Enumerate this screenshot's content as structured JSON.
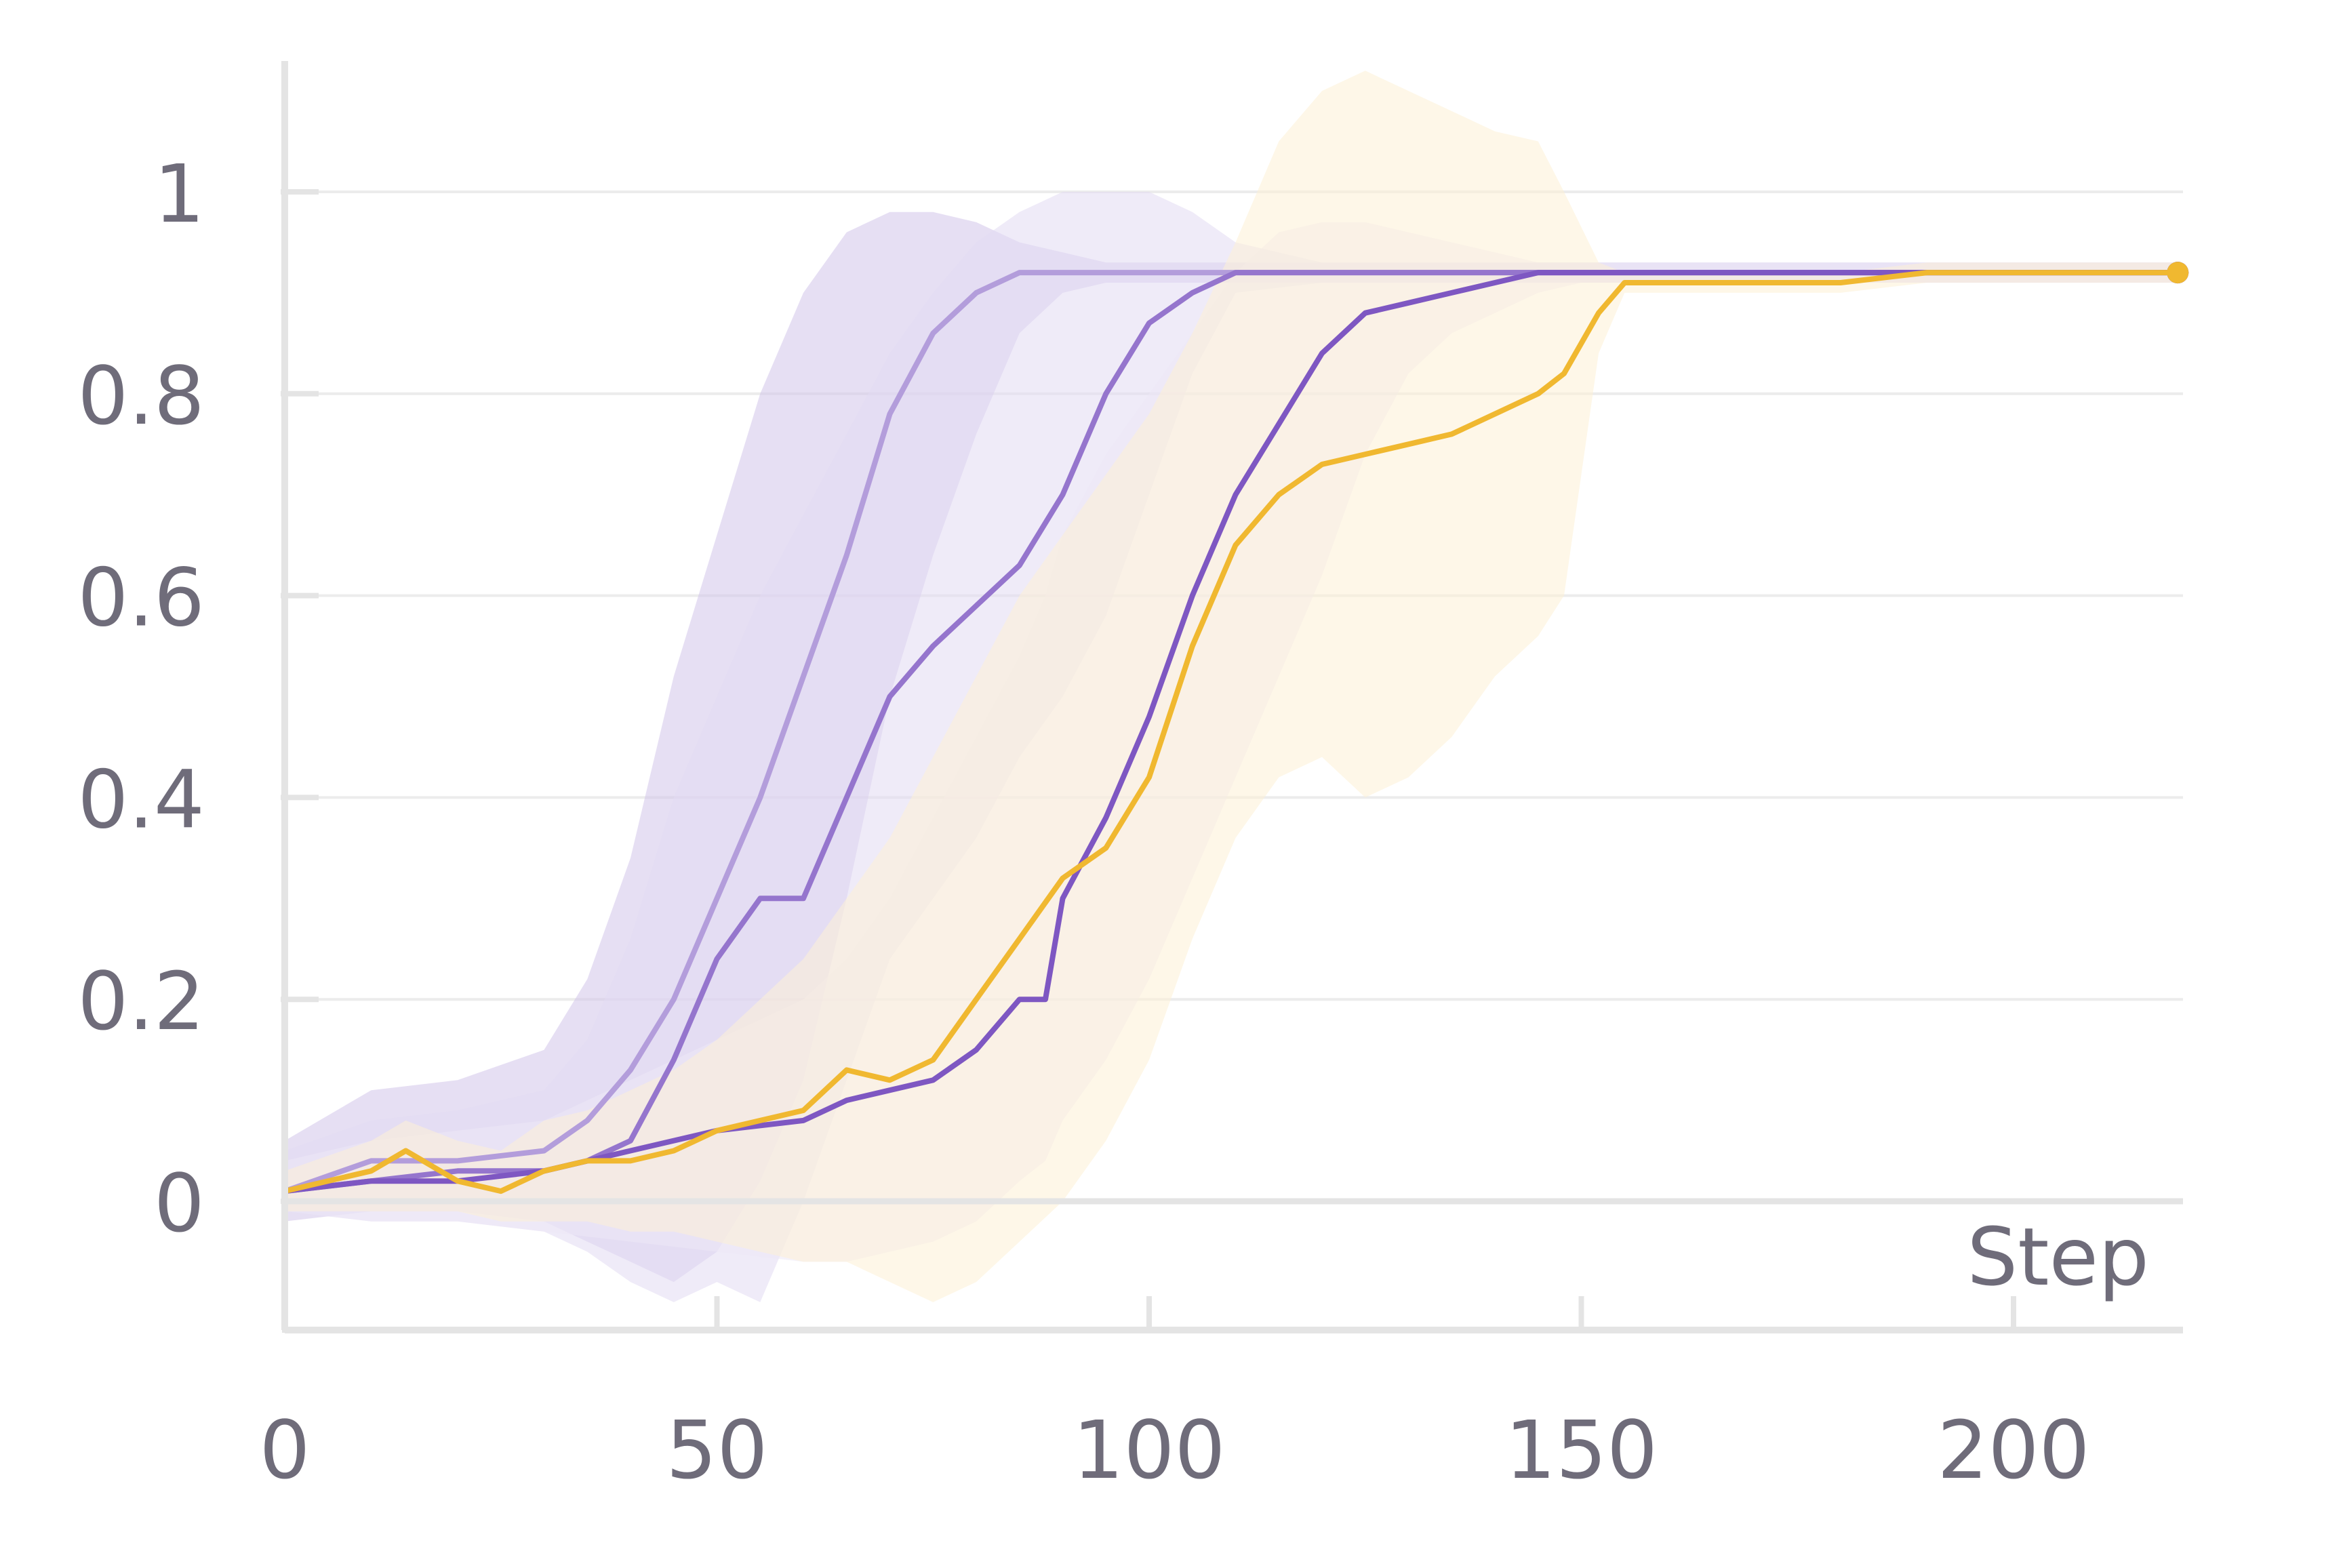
{
  "chart_data": {
    "type": "line",
    "xlabel": "Step",
    "ylabel": "",
    "xlim": [
      0,
      220
    ],
    "ylim": [
      -0.12,
      1.12
    ],
    "x_ticks": [
      0,
      50,
      100,
      150,
      200
    ],
    "x_tick_labels": [
      "0",
      "50",
      "100",
      "150",
      "200"
    ],
    "y_ticks": [
      0,
      0.2,
      0.4,
      0.6,
      0.8,
      1
    ],
    "y_tick_labels": [
      "0",
      "0.2",
      "0.4",
      "0.6",
      "0.8",
      "1"
    ],
    "grid": "horizontal",
    "legend": "none",
    "series": [
      {
        "color": "#b39ddb",
        "band_color": "#d1c4e9",
        "x": [
          0,
          10,
          20,
          30,
          35,
          40,
          45,
          50,
          55,
          60,
          65,
          70,
          75,
          80,
          85,
          90,
          95,
          100,
          110,
          120,
          130,
          140,
          150,
          160,
          170,
          180,
          190,
          200,
          210,
          219
        ],
        "y": [
          0.01,
          0.04,
          0.04,
          0.05,
          0.08,
          0.13,
          0.2,
          0.3,
          0.4,
          0.52,
          0.64,
          0.78,
          0.86,
          0.9,
          0.92,
          0.92,
          0.92,
          0.92,
          0.92,
          0.92,
          0.92,
          0.92,
          0.92,
          0.92,
          0.92,
          0.92,
          0.92,
          0.92,
          0.92,
          0.92
        ],
        "lower": [
          -0.02,
          -0.01,
          -0.01,
          -0.02,
          -0.04,
          -0.06,
          -0.08,
          -0.05,
          0.02,
          0.12,
          0.3,
          0.5,
          0.64,
          0.76,
          0.86,
          0.9,
          0.91,
          0.91,
          0.91,
          0.91,
          0.91,
          0.91,
          0.91,
          0.91,
          0.91,
          0.91,
          0.91,
          0.91,
          0.91,
          0.91
        ],
        "upper": [
          0.06,
          0.11,
          0.12,
          0.15,
          0.22,
          0.34,
          0.52,
          0.66,
          0.8,
          0.9,
          0.96,
          0.98,
          0.98,
          0.97,
          0.95,
          0.94,
          0.93,
          0.93,
          0.93,
          0.93,
          0.93,
          0.93,
          0.93,
          0.93,
          0.93,
          0.93,
          0.93,
          0.93,
          0.93,
          0.93
        ]
      },
      {
        "color": "#9575cd",
        "band_color": "#e2dbf2",
        "x": [
          0,
          10,
          20,
          30,
          35,
          40,
          45,
          50,
          55,
          60,
          65,
          70,
          75,
          80,
          85,
          90,
          95,
          100,
          105,
          110,
          120,
          130,
          140,
          150,
          160,
          170,
          180,
          190,
          200,
          210,
          219
        ],
        "y": [
          0.01,
          0.02,
          0.03,
          0.03,
          0.04,
          0.06,
          0.14,
          0.24,
          0.3,
          0.3,
          0.4,
          0.5,
          0.55,
          0.59,
          0.63,
          0.7,
          0.8,
          0.87,
          0.9,
          0.92,
          0.92,
          0.92,
          0.92,
          0.92,
          0.92,
          0.92,
          0.92,
          0.92,
          0.92,
          0.92,
          0.92
        ],
        "lower": [
          -0.01,
          -0.02,
          -0.02,
          -0.03,
          -0.05,
          -0.08,
          -0.1,
          -0.08,
          -0.1,
          0.0,
          0.12,
          0.24,
          0.3,
          0.36,
          0.44,
          0.5,
          0.58,
          0.7,
          0.82,
          0.9,
          0.91,
          0.91,
          0.91,
          0.91,
          0.91,
          0.91,
          0.91,
          0.91,
          0.91,
          0.91,
          0.91
        ],
        "upper": [
          0.05,
          0.08,
          0.09,
          0.11,
          0.16,
          0.26,
          0.4,
          0.5,
          0.6,
          0.68,
          0.76,
          0.84,
          0.9,
          0.95,
          0.98,
          1.0,
          1.0,
          1.0,
          0.98,
          0.95,
          0.93,
          0.93,
          0.93,
          0.93,
          0.93,
          0.93,
          0.93,
          0.93,
          0.93,
          0.93,
          0.93
        ]
      },
      {
        "color": "#7e57c2",
        "band_color": "#ede7f6",
        "x": [
          0,
          10,
          20,
          30,
          40,
          50,
          60,
          65,
          70,
          75,
          80,
          85,
          88,
          90,
          95,
          100,
          105,
          110,
          115,
          120,
          125,
          130,
          135,
          140,
          145,
          150,
          160,
          170,
          180,
          190,
          200,
          210,
          219
        ],
        "y": [
          0.01,
          0.02,
          0.02,
          0.03,
          0.05,
          0.07,
          0.08,
          0.1,
          0.11,
          0.12,
          0.15,
          0.2,
          0.2,
          0.3,
          0.38,
          0.48,
          0.6,
          0.7,
          0.77,
          0.84,
          0.88,
          0.89,
          0.9,
          0.91,
          0.92,
          0.92,
          0.92,
          0.92,
          0.92,
          0.92,
          0.92,
          0.92,
          0.92
        ],
        "lower": [
          -0.01,
          -0.02,
          -0.02,
          -0.03,
          -0.04,
          -0.05,
          -0.06,
          -0.06,
          -0.05,
          -0.04,
          -0.02,
          0.02,
          0.04,
          0.08,
          0.14,
          0.22,
          0.32,
          0.42,
          0.52,
          0.62,
          0.74,
          0.82,
          0.86,
          0.88,
          0.9,
          0.91,
          0.91,
          0.91,
          0.91,
          0.91,
          0.91,
          0.91,
          0.91
        ],
        "upper": [
          0.04,
          0.06,
          0.07,
          0.08,
          0.12,
          0.16,
          0.2,
          0.24,
          0.3,
          0.38,
          0.46,
          0.54,
          0.6,
          0.66,
          0.74,
          0.8,
          0.86,
          0.92,
          0.96,
          0.97,
          0.97,
          0.96,
          0.95,
          0.94,
          0.93,
          0.93,
          0.93,
          0.93,
          0.93,
          0.93,
          0.93,
          0.93,
          0.93
        ]
      },
      {
        "color": "#f0b830",
        "band_color": "#fdf1d6",
        "x": [
          0,
          10,
          14,
          20,
          25,
          30,
          35,
          40,
          45,
          50,
          55,
          60,
          65,
          70,
          75,
          80,
          85,
          90,
          95,
          100,
          105,
          110,
          115,
          120,
          125,
          130,
          135,
          140,
          145,
          148,
          152,
          155,
          160,
          170,
          180,
          190,
          200,
          210,
          219
        ],
        "y": [
          0.01,
          0.03,
          0.05,
          0.02,
          0.01,
          0.03,
          0.04,
          0.04,
          0.05,
          0.07,
          0.08,
          0.09,
          0.13,
          0.12,
          0.14,
          0.2,
          0.26,
          0.32,
          0.35,
          0.42,
          0.55,
          0.65,
          0.7,
          0.73,
          0.74,
          0.75,
          0.76,
          0.78,
          0.8,
          0.82,
          0.88,
          0.91,
          0.91,
          0.91,
          0.91,
          0.92,
          0.92,
          0.92,
          0.92
        ],
        "lower": [
          -0.01,
          -0.01,
          -0.01,
          -0.01,
          -0.02,
          -0.02,
          -0.02,
          -0.03,
          -0.03,
          -0.04,
          -0.05,
          -0.06,
          -0.06,
          -0.08,
          -0.1,
          -0.08,
          -0.04,
          0.0,
          0.06,
          0.14,
          0.26,
          0.36,
          0.42,
          0.44,
          0.4,
          0.42,
          0.46,
          0.52,
          0.56,
          0.6,
          0.84,
          0.9,
          0.9,
          0.9,
          0.9,
          0.91,
          0.91,
          0.91,
          0.91
        ],
        "upper": [
          0.03,
          0.06,
          0.08,
          0.06,
          0.05,
          0.08,
          0.09,
          0.11,
          0.13,
          0.16,
          0.2,
          0.24,
          0.3,
          0.36,
          0.44,
          0.52,
          0.6,
          0.66,
          0.72,
          0.78,
          0.86,
          0.95,
          1.05,
          1.1,
          1.12,
          1.1,
          1.08,
          1.06,
          1.05,
          1.0,
          0.93,
          0.92,
          0.92,
          0.92,
          0.92,
          0.93,
          0.93,
          0.93,
          0.93
        ]
      }
    ]
  }
}
